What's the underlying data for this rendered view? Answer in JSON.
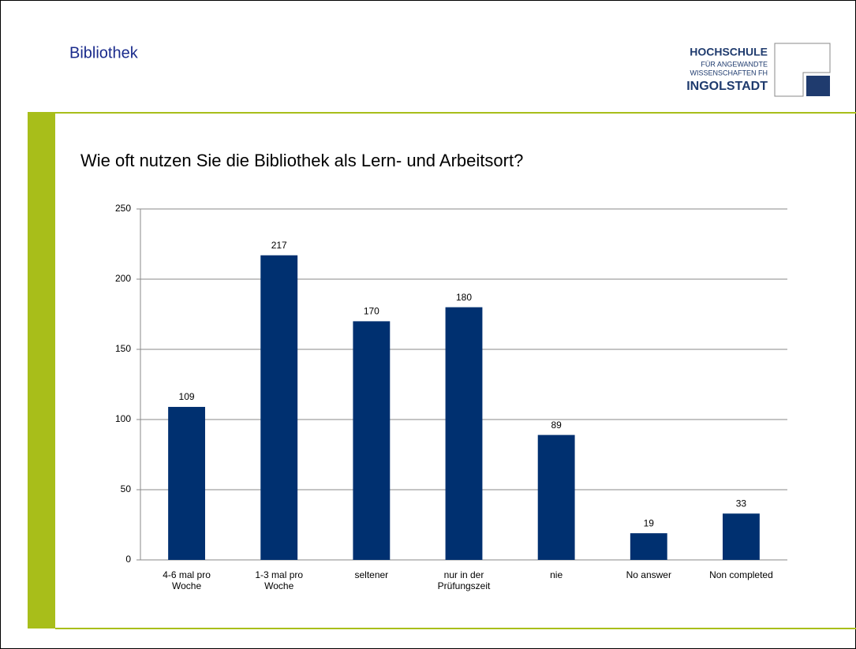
{
  "header": {
    "title": "Bibliothek",
    "logo": [
      "HOCHSCHULE",
      "FÜR ANGEWANDTE",
      "WISSENSCHAFTEN FH",
      "INGOLSTADT"
    ]
  },
  "chart_data": {
    "type": "bar",
    "title": "Wie oft nutzen Sie die Bibliothek als Lern- und Arbeitsort?",
    "categories": [
      "4-6 mal pro\nWoche",
      "1-3 mal pro\nWoche",
      "seltener",
      "nur in der\nPrüfungszeit",
      "nie",
      "No answer",
      "Non completed"
    ],
    "values": [
      109,
      217,
      170,
      180,
      89,
      19,
      33
    ],
    "color": "#003070",
    "ylim": [
      0,
      250
    ],
    "yticks": [
      0,
      50,
      100,
      150,
      200,
      250
    ],
    "grid": true
  }
}
